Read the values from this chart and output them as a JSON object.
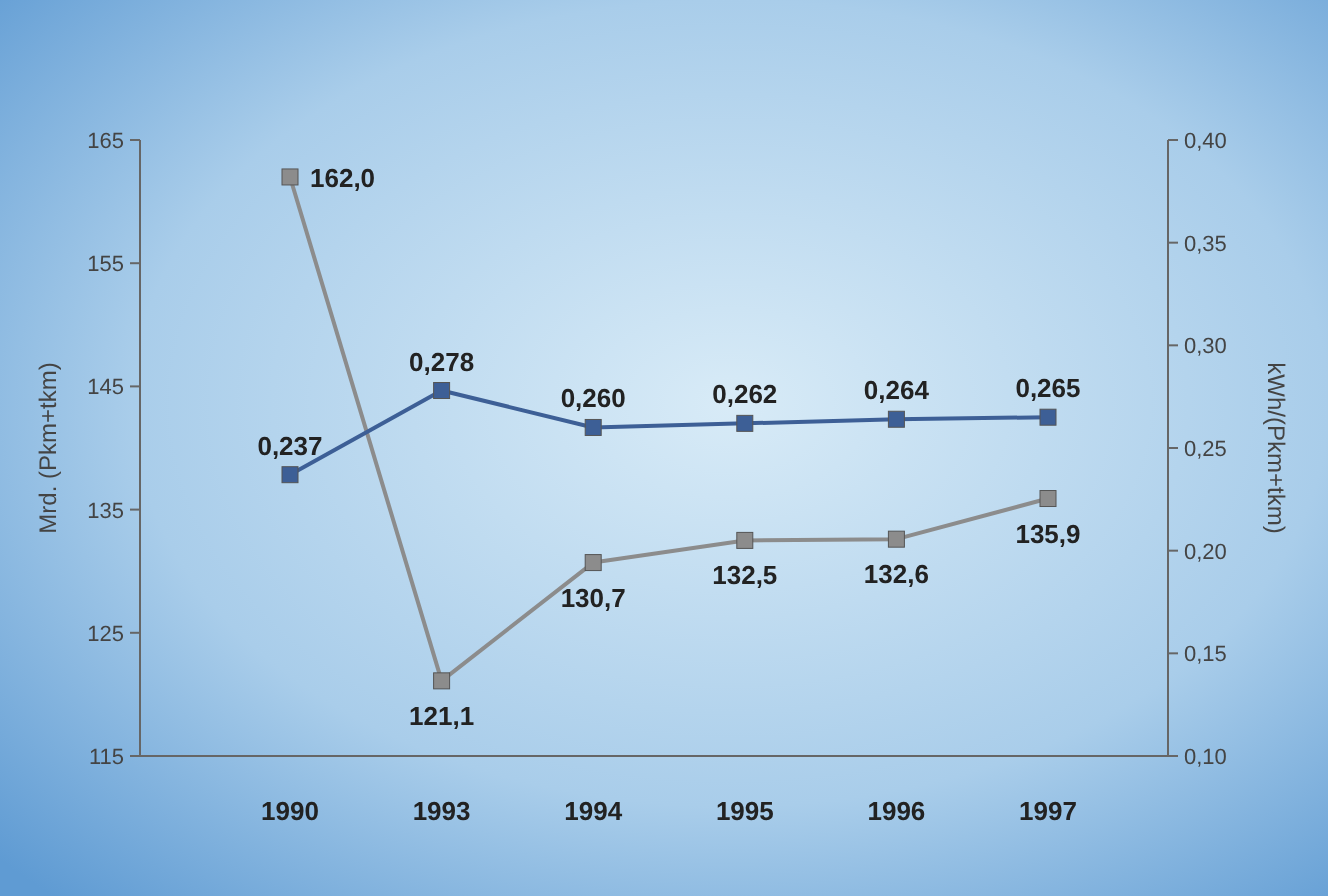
{
  "chart_data": {
    "type": "line",
    "categories": [
      "1990",
      "1993",
      "1994",
      "1995",
      "1996",
      "1997"
    ],
    "ylabel": "Mrd. (Pkm+tkm)",
    "y2label": "kWh/(Pkm+tkm)",
    "ylim": [
      115,
      165
    ],
    "yticks": [
      115,
      125,
      135,
      145,
      155,
      165
    ],
    "y2lim": [
      0.1,
      0.4
    ],
    "y2ticks": [
      {
        "value": 0.1,
        "label": "0,10"
      },
      {
        "value": 0.15,
        "label": "0,15"
      },
      {
        "value": 0.2,
        "label": "0,20"
      },
      {
        "value": 0.25,
        "label": "0,25"
      },
      {
        "value": 0.3,
        "label": "0,30"
      },
      {
        "value": 0.35,
        "label": "0,35"
      },
      {
        "value": 0.4,
        "label": "0,40"
      }
    ],
    "series": [
      {
        "color": "#8c8c8c",
        "values": [
          162.0,
          121.1,
          130.7,
          132.5,
          132.6,
          135.9
        ],
        "value_labels": [
          "162,0",
          "121,1",
          "130,7",
          "132,5",
          "132,6",
          "135,9"
        ]
      },
      {
        "color": "#3d5f96",
        "axis": "y2",
        "values": [
          0.237,
          0.278,
          0.26,
          0.262,
          0.264,
          0.265
        ],
        "value_labels": [
          "0,237",
          "0,278",
          "0,260",
          "0,262",
          "0,264",
          "0,265"
        ]
      }
    ],
    "marker": "square",
    "grid": false
  }
}
